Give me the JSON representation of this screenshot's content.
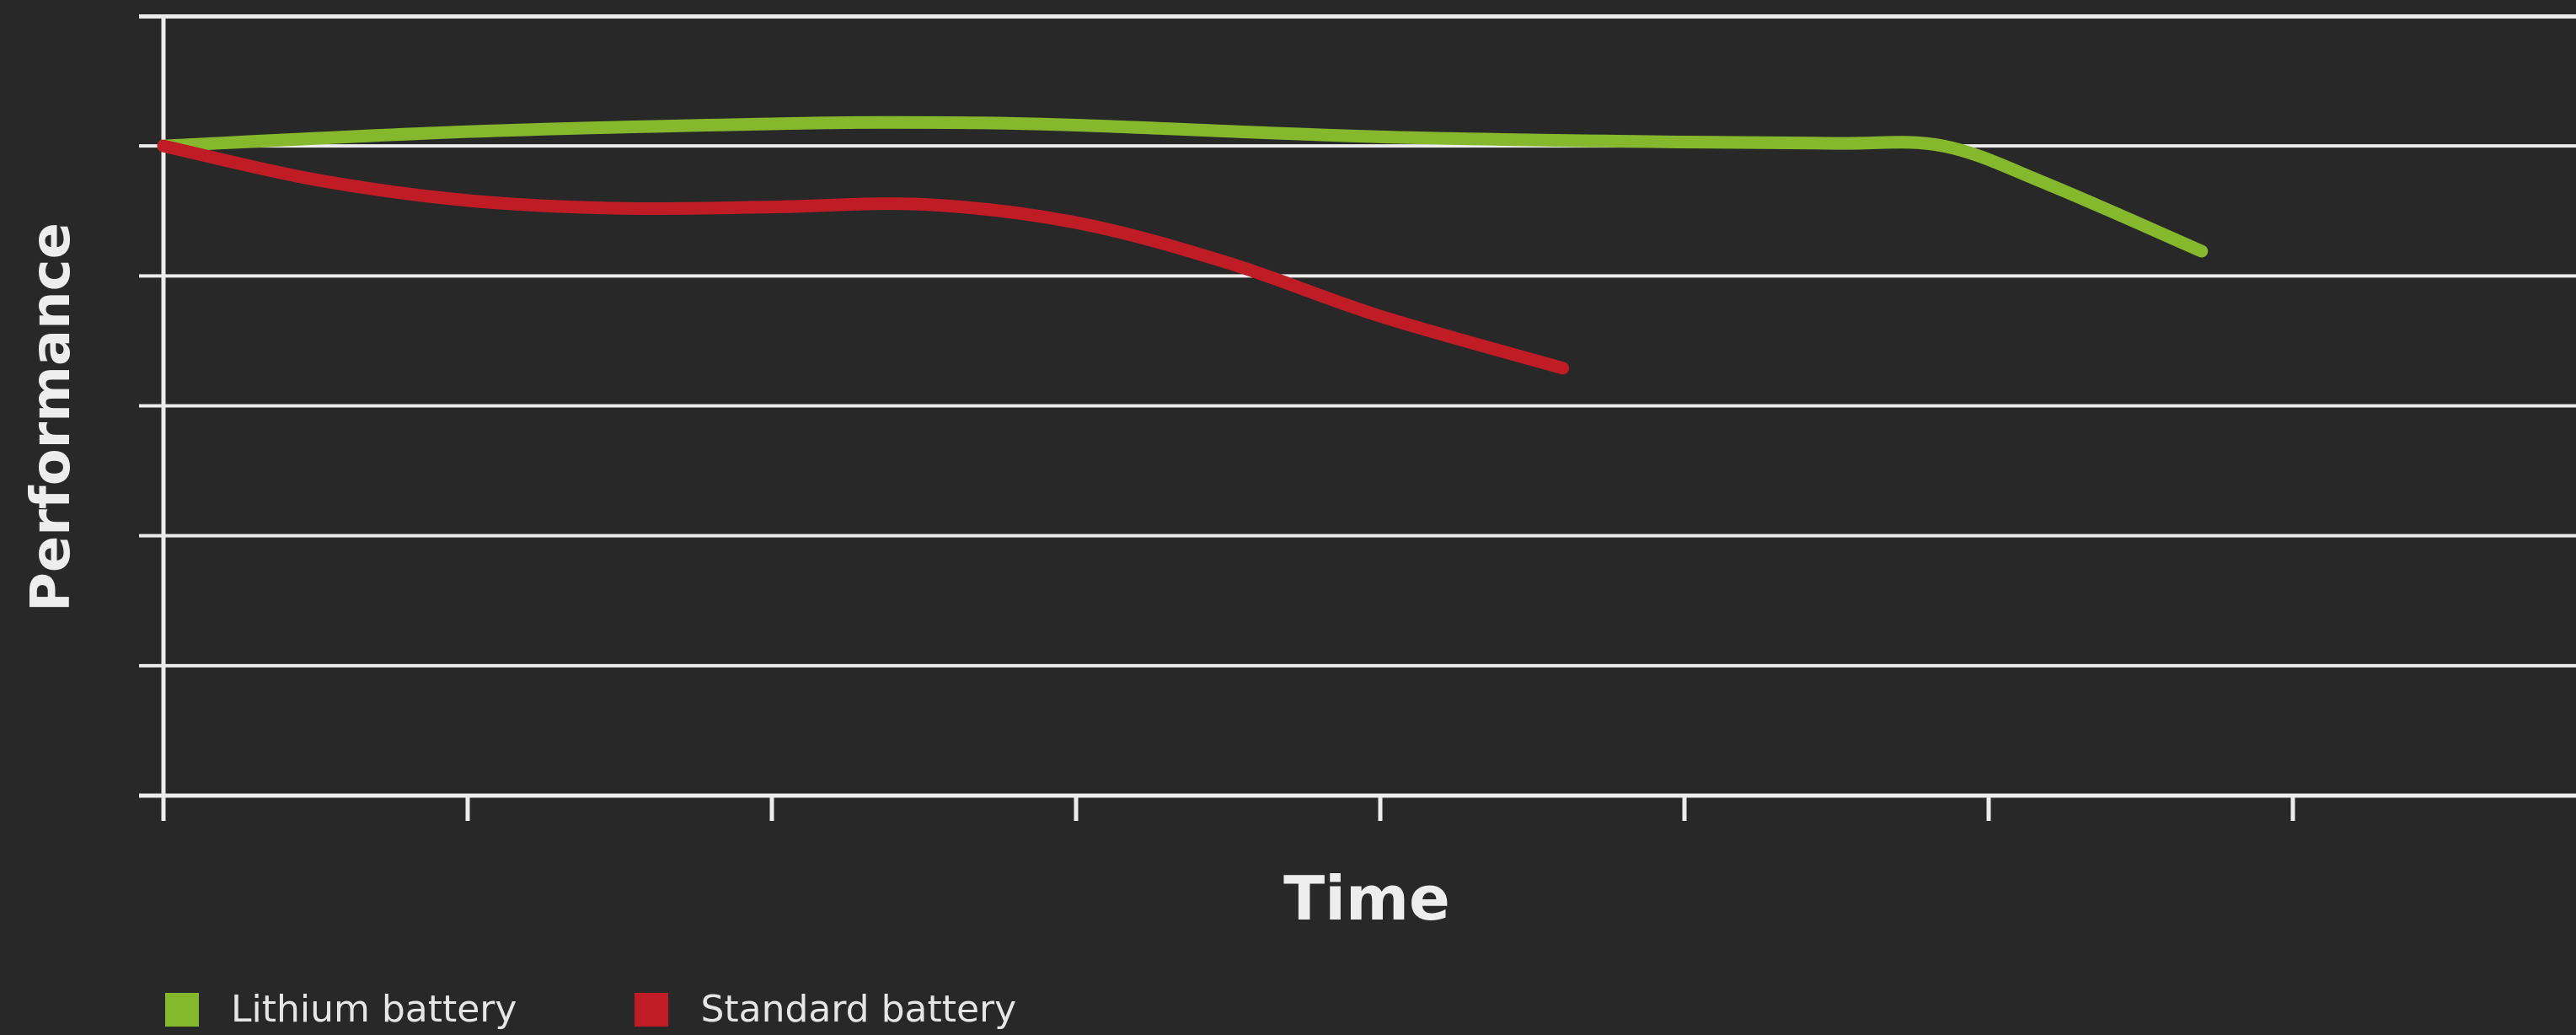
{
  "chart_data": {
    "type": "line",
    "title": "",
    "xlabel": "Time",
    "ylabel": "Performance",
    "x_ticks": 8,
    "y_gridlines": 7,
    "xlim": [
      0,
      8
    ],
    "ylim": [
      0,
      6
    ],
    "grid": true,
    "legend_position": "bottom-left",
    "series": [
      {
        "name": "Lithium battery",
        "color": "#86b82d",
        "x": [
          0,
          1,
          2,
          2.5,
          3,
          4,
          5,
          5.5,
          5.85,
          6.2,
          6.7
        ],
        "y": [
          5,
          5.11,
          5.17,
          5.18,
          5.16,
          5.07,
          5.03,
          5.02,
          5.0,
          4.7,
          4.19
        ]
      },
      {
        "name": "Standard battery",
        "color": "#bf1c26",
        "x": [
          0,
          0.5,
          1,
          1.5,
          2,
          2.5,
          3,
          3.5,
          4,
          4.6
        ],
        "y": [
          5,
          4.74,
          4.58,
          4.52,
          4.53,
          4.55,
          4.41,
          4.1,
          3.69,
          3.29
        ]
      }
    ]
  }
}
